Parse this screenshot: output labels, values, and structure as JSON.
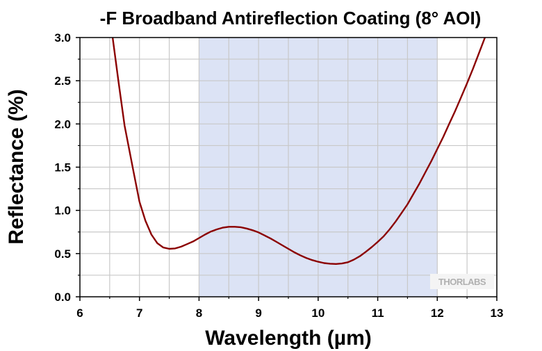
{
  "chart_data": {
    "type": "line",
    "title": "-F Broadband Antireflection Coating (8° AOI)",
    "xlabel": "Wavelength (µm)",
    "ylabel": "Reflectance (%)",
    "xlim": [
      6,
      13
    ],
    "ylim": [
      0,
      3.0
    ],
    "x_ticks": [
      "6",
      "7",
      "8",
      "9",
      "10",
      "11",
      "12",
      "13"
    ],
    "y_ticks": [
      "0.0",
      "0.5",
      "1.0",
      "1.5",
      "2.0",
      "2.5",
      "3.0"
    ],
    "grid": true,
    "shaded_band": {
      "x_start": 8,
      "x_end": 12,
      "color": "#dce3f5"
    },
    "series": [
      {
        "color": "#8b0000",
        "x": [
          6.55,
          6.65,
          6.75,
          6.9,
          7.0,
          7.1,
          7.2,
          7.3,
          7.4,
          7.5,
          7.6,
          7.7,
          7.8,
          7.9,
          8.0,
          8.1,
          8.2,
          8.3,
          8.4,
          8.5,
          8.6,
          8.7,
          8.8,
          8.9,
          9.0,
          9.1,
          9.2,
          9.3,
          9.4,
          9.5,
          9.6,
          9.7,
          9.8,
          9.9,
          10.0,
          10.1,
          10.2,
          10.3,
          10.4,
          10.5,
          10.6,
          10.7,
          10.8,
          10.9,
          11.0,
          11.1,
          11.2,
          11.3,
          11.4,
          11.5,
          11.6,
          11.7,
          11.8,
          11.9,
          12.0,
          12.1,
          12.2,
          12.3,
          12.4,
          12.5,
          12.6,
          12.7,
          12.8
        ],
        "y": [
          3.0,
          2.48,
          1.98,
          1.45,
          1.1,
          0.88,
          0.72,
          0.62,
          0.57,
          0.555,
          0.56,
          0.58,
          0.61,
          0.64,
          0.68,
          0.72,
          0.755,
          0.78,
          0.8,
          0.81,
          0.81,
          0.805,
          0.79,
          0.77,
          0.745,
          0.71,
          0.675,
          0.635,
          0.595,
          0.555,
          0.515,
          0.48,
          0.45,
          0.425,
          0.405,
          0.39,
          0.383,
          0.38,
          0.385,
          0.4,
          0.43,
          0.47,
          0.52,
          0.575,
          0.635,
          0.7,
          0.78,
          0.87,
          0.97,
          1.07,
          1.19,
          1.31,
          1.44,
          1.57,
          1.71,
          1.85,
          2.0,
          2.15,
          2.31,
          2.47,
          2.64,
          2.82,
          3.0
        ]
      }
    ]
  },
  "watermark": "THORLABS"
}
